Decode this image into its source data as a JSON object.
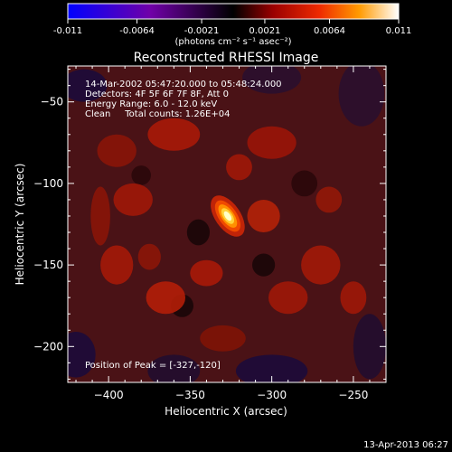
{
  "colorbar": {
    "ticks": [
      "-0.011",
      "-0.0064",
      "-0.0021",
      "0.0021",
      "0.0064",
      "0.011"
    ],
    "units": "(photons cm⁻² s⁻¹ asec⁻²)",
    "range": [
      -0.011,
      0.011
    ]
  },
  "chart_data": {
    "type": "heatmap",
    "title": "Reconstructed RHESSI Image",
    "xlabel": "Heliocentric X (arcsec)",
    "ylabel": "Heliocentric Y (arcsec)",
    "xlim": [
      -425,
      -230
    ],
    "ylim": [
      -222,
      -28
    ],
    "xticks": [
      -400,
      -350,
      -300,
      -250
    ],
    "yticks": [
      -50,
      -100,
      -150,
      -200
    ],
    "peak": {
      "x": -327,
      "y": -120,
      "value": 0.011
    },
    "info_lines": [
      "14-Mar-2002 05:47:20.000 to 05:48:24.000",
      "Detectors: 4F 5F 6F 7F 8F, Att 0",
      "Energy Range: 6.0 - 12.0 keV",
      "Clean     Total counts: 1.26E+04"
    ],
    "peak_label": "Position of Peak = [-327,-120]"
  },
  "footer": {
    "timestamp": "13-Apr-2013 06:27"
  }
}
